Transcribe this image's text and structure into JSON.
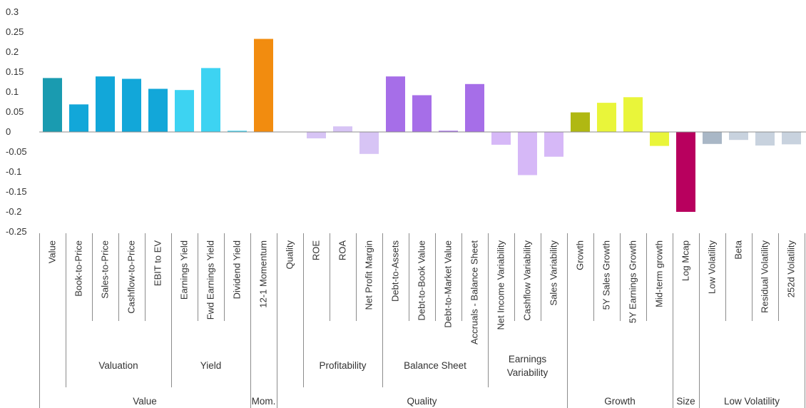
{
  "chart_data": {
    "type": "bar",
    "title": "",
    "xlabel": "",
    "ylabel": "",
    "ylim": [
      -0.25,
      0.3
    ],
    "yticks": [
      "0.3",
      "0.25",
      "0.2",
      "0.15",
      "0.1",
      "0.05",
      "0",
      "-0.05",
      "-0.1",
      "-0.15",
      "-0.2",
      "-0.25"
    ],
    "ytick_values": [
      0.3,
      0.25,
      0.2,
      0.15,
      0.1,
      0.05,
      0,
      -0.05,
      -0.1,
      -0.15,
      -0.2,
      -0.25
    ],
    "grid": false,
    "legend": "none",
    "categories": [
      "Value",
      "Book-to-Price",
      "Sales-to-Price",
      "Cashflow-to-Price",
      "EBIT to EV",
      "Earnings Yield",
      "Fwd Earnings Yield",
      "Dividend Yield",
      "12-1 Momentum",
      "Quality",
      "ROE",
      "ROA",
      "Net Profit Margin",
      "Debt-to-Assets",
      "Debt-to-Book Value",
      "Debt-to-Market Value",
      "Accruals - Balance Sheet",
      "Net Income Variability",
      "Cashflow Variability",
      "Sales Variability",
      "Growth",
      "5Y Sales Growth",
      "5Y Earnings Growth",
      "Mid-term growth",
      "Log Mcap",
      "Low Volatility",
      "Beta",
      "Residual Volatility",
      "252d Volatility"
    ],
    "values": [
      0.135,
      0.069,
      0.139,
      0.133,
      0.108,
      0.105,
      0.16,
      0.003,
      0.233,
      0.0,
      -0.016,
      0.014,
      -0.055,
      0.139,
      0.092,
      0.003,
      0.12,
      -0.032,
      -0.108,
      -0.062,
      0.049,
      0.073,
      0.087,
      -0.035,
      -0.2,
      -0.03,
      -0.02,
      -0.034,
      -0.031
    ],
    "colors": [
      "#1a9bb0",
      "#12a7d9",
      "#12a7d9",
      "#12a7d9",
      "#12a7d9",
      "#3dd3f2",
      "#3dd3f2",
      "#3dd3f2",
      "#f28c0f",
      "#d7c4f5",
      "#d7c4f5",
      "#d7c4f5",
      "#d7c4f5",
      "#a66ee8",
      "#a66ee8",
      "#a66ee8",
      "#a66ee8",
      "#d6b8f7",
      "#d6b8f7",
      "#d6b8f7",
      "#b0b812",
      "#e9f53a",
      "#e9f53a",
      "#e9f53a",
      "#b8005e",
      "#a9b7c6",
      "#c8d2de",
      "#c8d2de",
      "#c8d2de"
    ],
    "subgroups": [
      {
        "label": "",
        "start": 0,
        "end": 0
      },
      {
        "label": "Valuation",
        "start": 1,
        "end": 4
      },
      {
        "label": "Yield",
        "start": 5,
        "end": 7
      },
      {
        "label": "",
        "start": 8,
        "end": 8
      },
      {
        "label": "",
        "start": 9,
        "end": 9
      },
      {
        "label": "Profitability",
        "start": 10,
        "end": 12
      },
      {
        "label": "Balance Sheet",
        "start": 13,
        "end": 16
      },
      {
        "label": "Earnings Variability",
        "start": 17,
        "end": 19
      },
      {
        "label": "",
        "start": 20,
        "end": 23
      },
      {
        "label": "",
        "start": 24,
        "end": 24
      },
      {
        "label": "",
        "start": 25,
        "end": 28
      }
    ],
    "groups": [
      {
        "label": "Value",
        "start": 0,
        "end": 7
      },
      {
        "label": "Mom.",
        "start": 8,
        "end": 8
      },
      {
        "label": "Quality",
        "start": 9,
        "end": 19
      },
      {
        "label": "Growth",
        "start": 20,
        "end": 23
      },
      {
        "label": "Size",
        "start": 24,
        "end": 24
      },
      {
        "label": "Low Volatility",
        "start": 25,
        "end": 28
      }
    ]
  }
}
